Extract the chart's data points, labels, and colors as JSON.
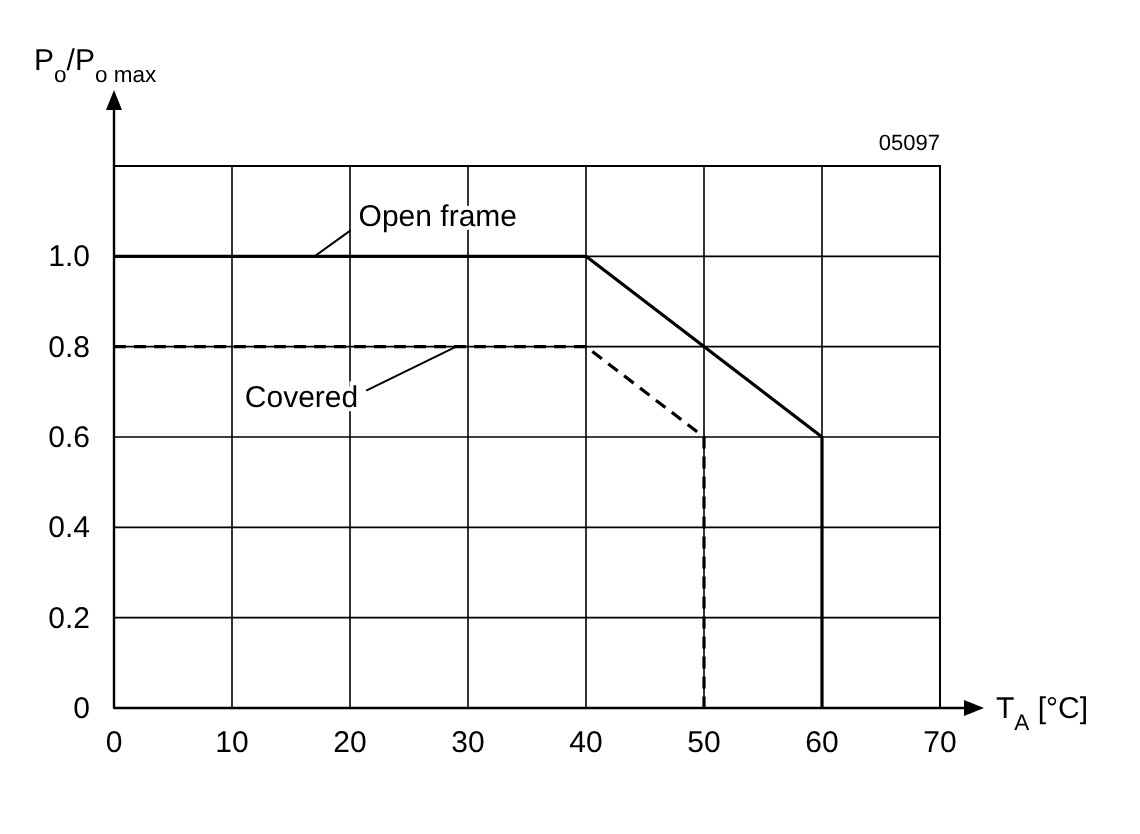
{
  "chart_data": {
    "type": "line",
    "xlabel": "T$_{A}$ [°C]",
    "ylabel": "P$_{o}$/P$_{o max}$",
    "xlim": [
      0,
      70
    ],
    "ylim": [
      0,
      1.2
    ],
    "xticks": [
      0,
      10,
      20,
      30,
      40,
      50,
      60,
      70
    ],
    "yticks": [
      0,
      0.2,
      0.4,
      0.6,
      0.8,
      {
        "value": 1,
        "label": "1.0"
      },
      {
        "value": 1.2,
        "label": null
      }
    ],
    "grid": true,
    "marker": "none",
    "annotations": [
      "05097"
    ],
    "series": [
      {
        "name": "Open frame",
        "color": "#000000",
        "line_style": "solid",
        "x": [
          0,
          40,
          60,
          60
        ],
        "values": [
          1,
          1,
          0.6,
          0
        ]
      },
      {
        "name": "Covered",
        "color": "#000000",
        "line_style": "dashed",
        "x": [
          0,
          40,
          50,
          50
        ],
        "values": [
          0.8,
          0.8,
          0.6,
          0
        ]
      }
    ]
  }
}
